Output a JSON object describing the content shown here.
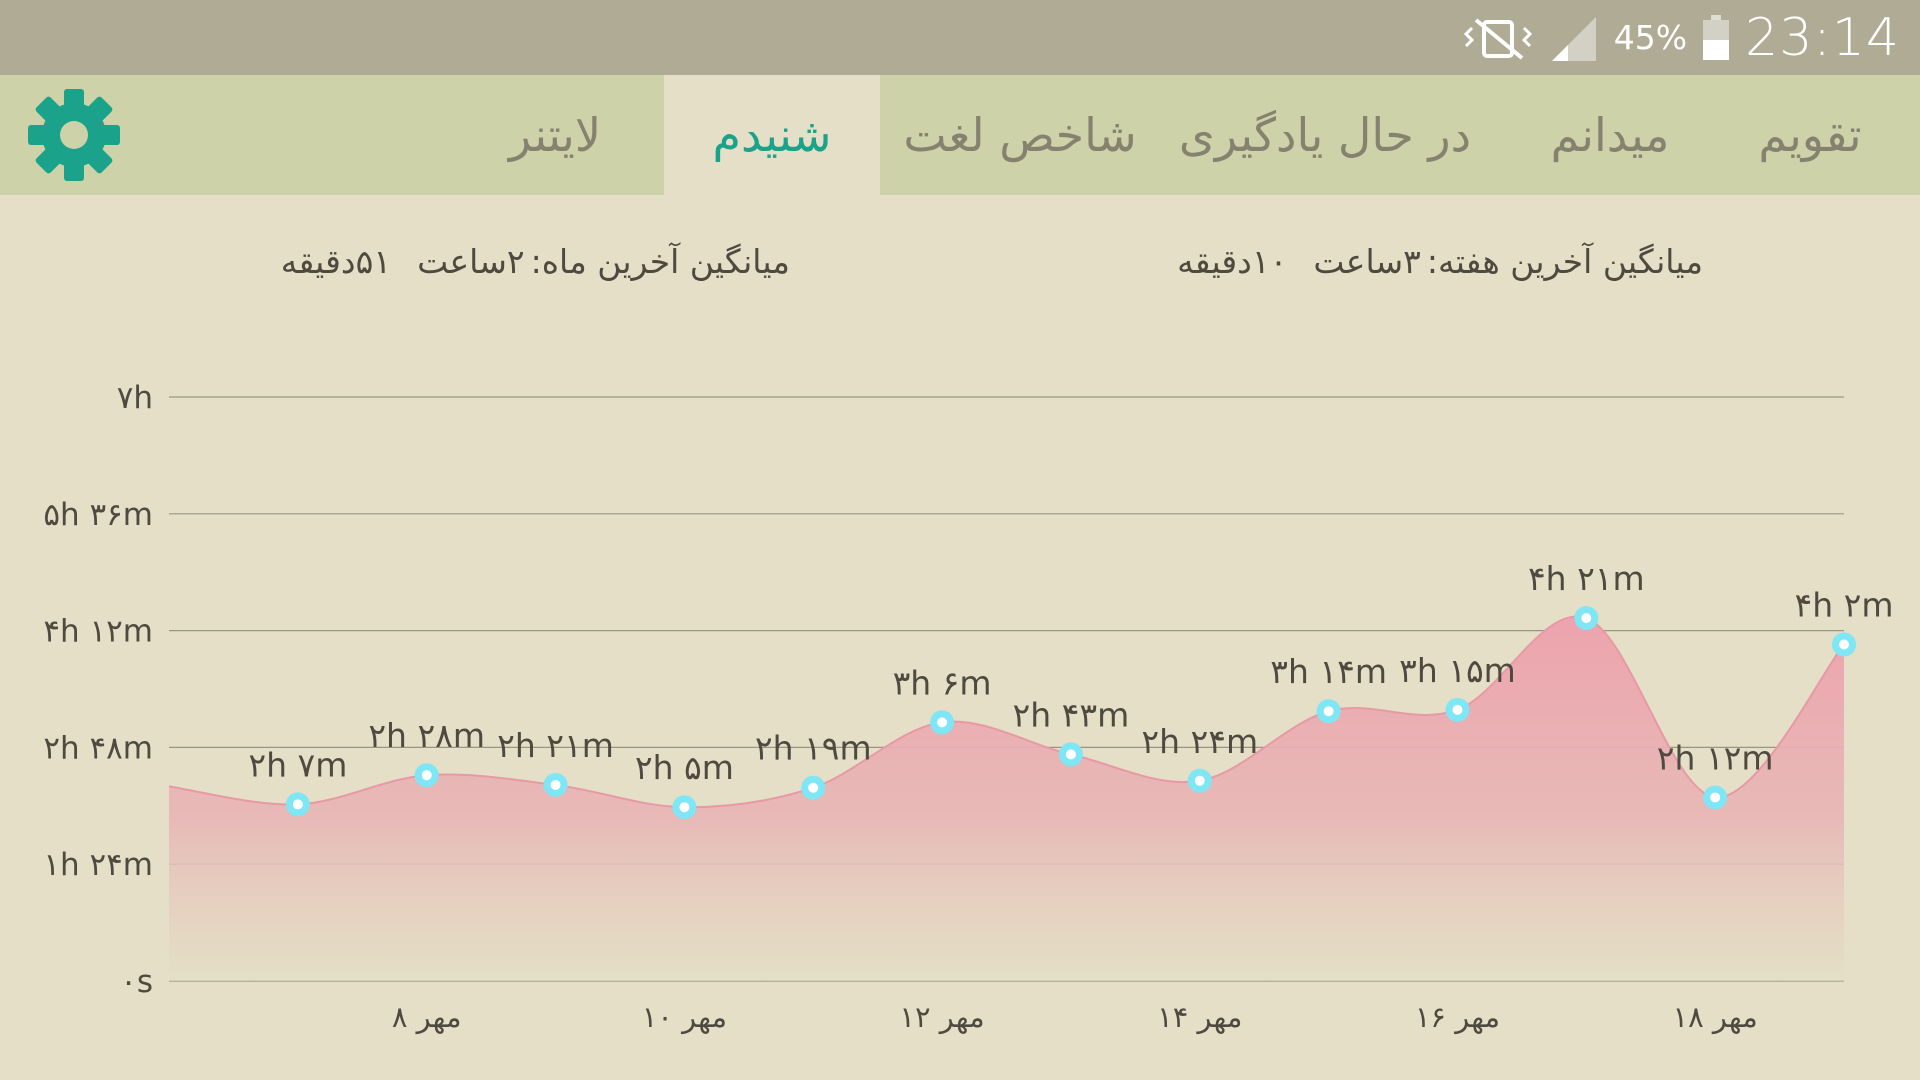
{
  "statusbar": {
    "time": "23:14",
    "battery": "45%",
    "icons": [
      "vibrate-off-icon",
      "signal-icon",
      "battery-icon"
    ]
  },
  "tabs": [
    {
      "label": "تقویم",
      "active": false
    },
    {
      "label": "میدانم",
      "active": false
    },
    {
      "label": "در حال یادگیری",
      "active": false
    },
    {
      "label": "شاخص لغت",
      "active": false
    },
    {
      "label": "شنیدم",
      "active": true
    },
    {
      "label": "لایتنر",
      "active": false
    }
  ],
  "settings_icon": "gear-icon",
  "averages": {
    "week_label": "میانگین آخرین هفته:",
    "week_hours": "۳ساعت",
    "week_minutes": "۱۰دقیقه",
    "month_label": "میانگین آخرین ماه:",
    "month_hours": "۲ساعت",
    "month_minutes": "۵۱دقیقه"
  },
  "colors": {
    "accent": "#1aa28a",
    "area_fill": "#eba7b0",
    "point": "#7ee6f5",
    "grid": "#9a9684"
  },
  "chart_data": {
    "type": "area",
    "y_unit": "minutes",
    "ylim": [
      0,
      420
    ],
    "yticks": [
      {
        "value": 0,
        "label": "۰s"
      },
      {
        "value": 84,
        "label": "۱h ۲۴m"
      },
      {
        "value": 168,
        "label": "۲h ۴۸m"
      },
      {
        "value": 252,
        "label": "۴h ۱۲m"
      },
      {
        "value": 336,
        "label": "۵h ۳۶m"
      },
      {
        "value": 420,
        "label": "۷h"
      }
    ],
    "xlim": [
      6.0,
      19.0
    ],
    "xticks": [
      {
        "value": 8,
        "label": "۸ مهر"
      },
      {
        "value": 10,
        "label": "۱۰ مهر"
      },
      {
        "value": 12,
        "label": "۱۲ مهر"
      },
      {
        "value": 14,
        "label": "۱۴ مهر"
      },
      {
        "value": 16,
        "label": "۱۶ مهر"
      },
      {
        "value": 18,
        "label": "۱۸ مهر"
      }
    ],
    "grid": true,
    "points": [
      {
        "x": 7,
        "y": 127,
        "label": "۲h ۷m"
      },
      {
        "x": 8,
        "y": 148,
        "label": "۲h ۲۸m"
      },
      {
        "x": 9,
        "y": 141,
        "label": "۲h ۲۱m"
      },
      {
        "x": 10,
        "y": 125,
        "label": "۲h ۵m"
      },
      {
        "x": 11,
        "y": 139,
        "label": "۲h ۱۹m"
      },
      {
        "x": 12,
        "y": 186,
        "label": "۳h ۶m"
      },
      {
        "x": 13,
        "y": 163,
        "label": "۲h ۴۳m"
      },
      {
        "x": 14,
        "y": 144,
        "label": "۲h ۲۴m"
      },
      {
        "x": 15,
        "y": 194,
        "label": "۳h ۱۴m"
      },
      {
        "x": 16,
        "y": 195,
        "label": "۳h ۱۵m"
      },
      {
        "x": 17,
        "y": 261,
        "label": "۴h ۲۱m"
      },
      {
        "x": 18,
        "y": 132,
        "label": "۲h ۱۲m"
      },
      {
        "x": 19,
        "y": 242,
        "label": "۴h ۲m"
      }
    ],
    "lead_in": {
      "x": 6.0,
      "y": 140
    }
  }
}
